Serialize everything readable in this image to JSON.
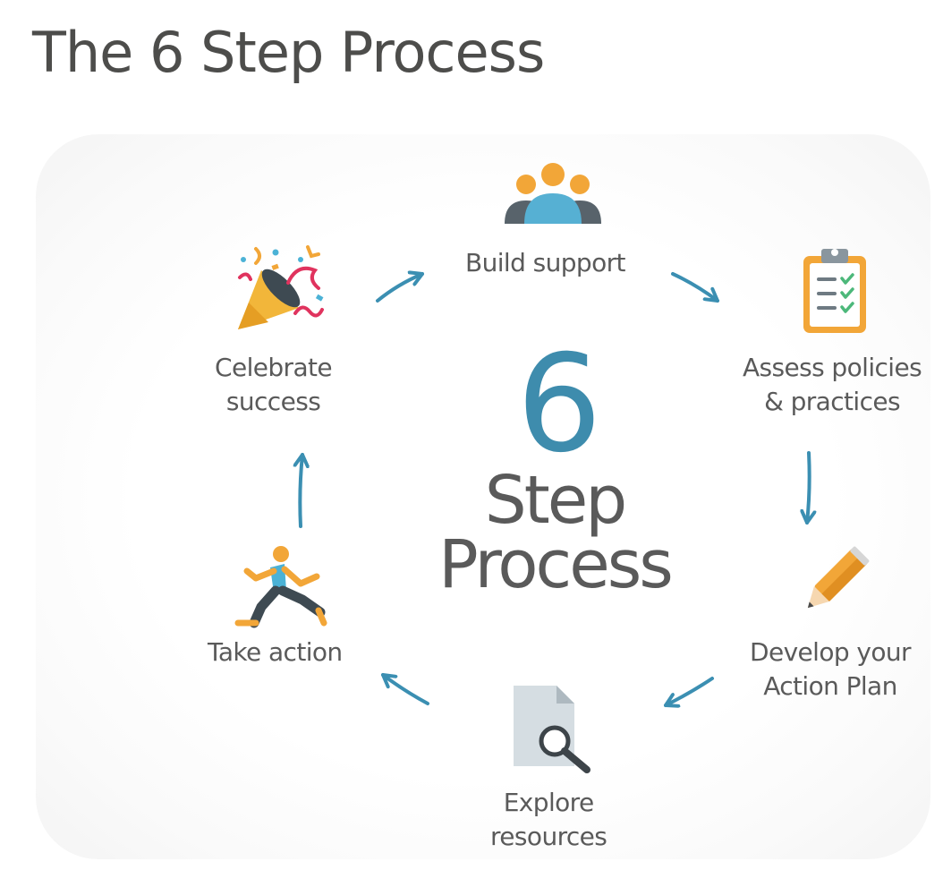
{
  "title": "The 6 Step Process",
  "center": {
    "number": "6",
    "line1": "Step",
    "line2": "Process"
  },
  "steps": [
    {
      "label_lines": [
        "Build support"
      ],
      "icon": "people-group-icon"
    },
    {
      "label_lines": [
        "Assess policies",
        "& practices"
      ],
      "icon": "clipboard-checklist-icon"
    },
    {
      "label_lines": [
        "Develop your",
        "Action Plan"
      ],
      "icon": "pencil-icon"
    },
    {
      "label_lines": [
        "Explore",
        "resources"
      ],
      "icon": "document-magnifier-icon"
    },
    {
      "label_lines": [
        "Take action"
      ],
      "icon": "running-person-icon"
    },
    {
      "label_lines": [
        "Celebrate",
        "success"
      ],
      "icon": "party-popper-icon"
    }
  ],
  "colors": {
    "title": "#4d4d4b",
    "accent_blue": "#3e8cad",
    "arrow": "#3b8fb2",
    "label": "#5a5a5a",
    "icon_orange": "#f2a638",
    "icon_gray": "#58636b"
  }
}
